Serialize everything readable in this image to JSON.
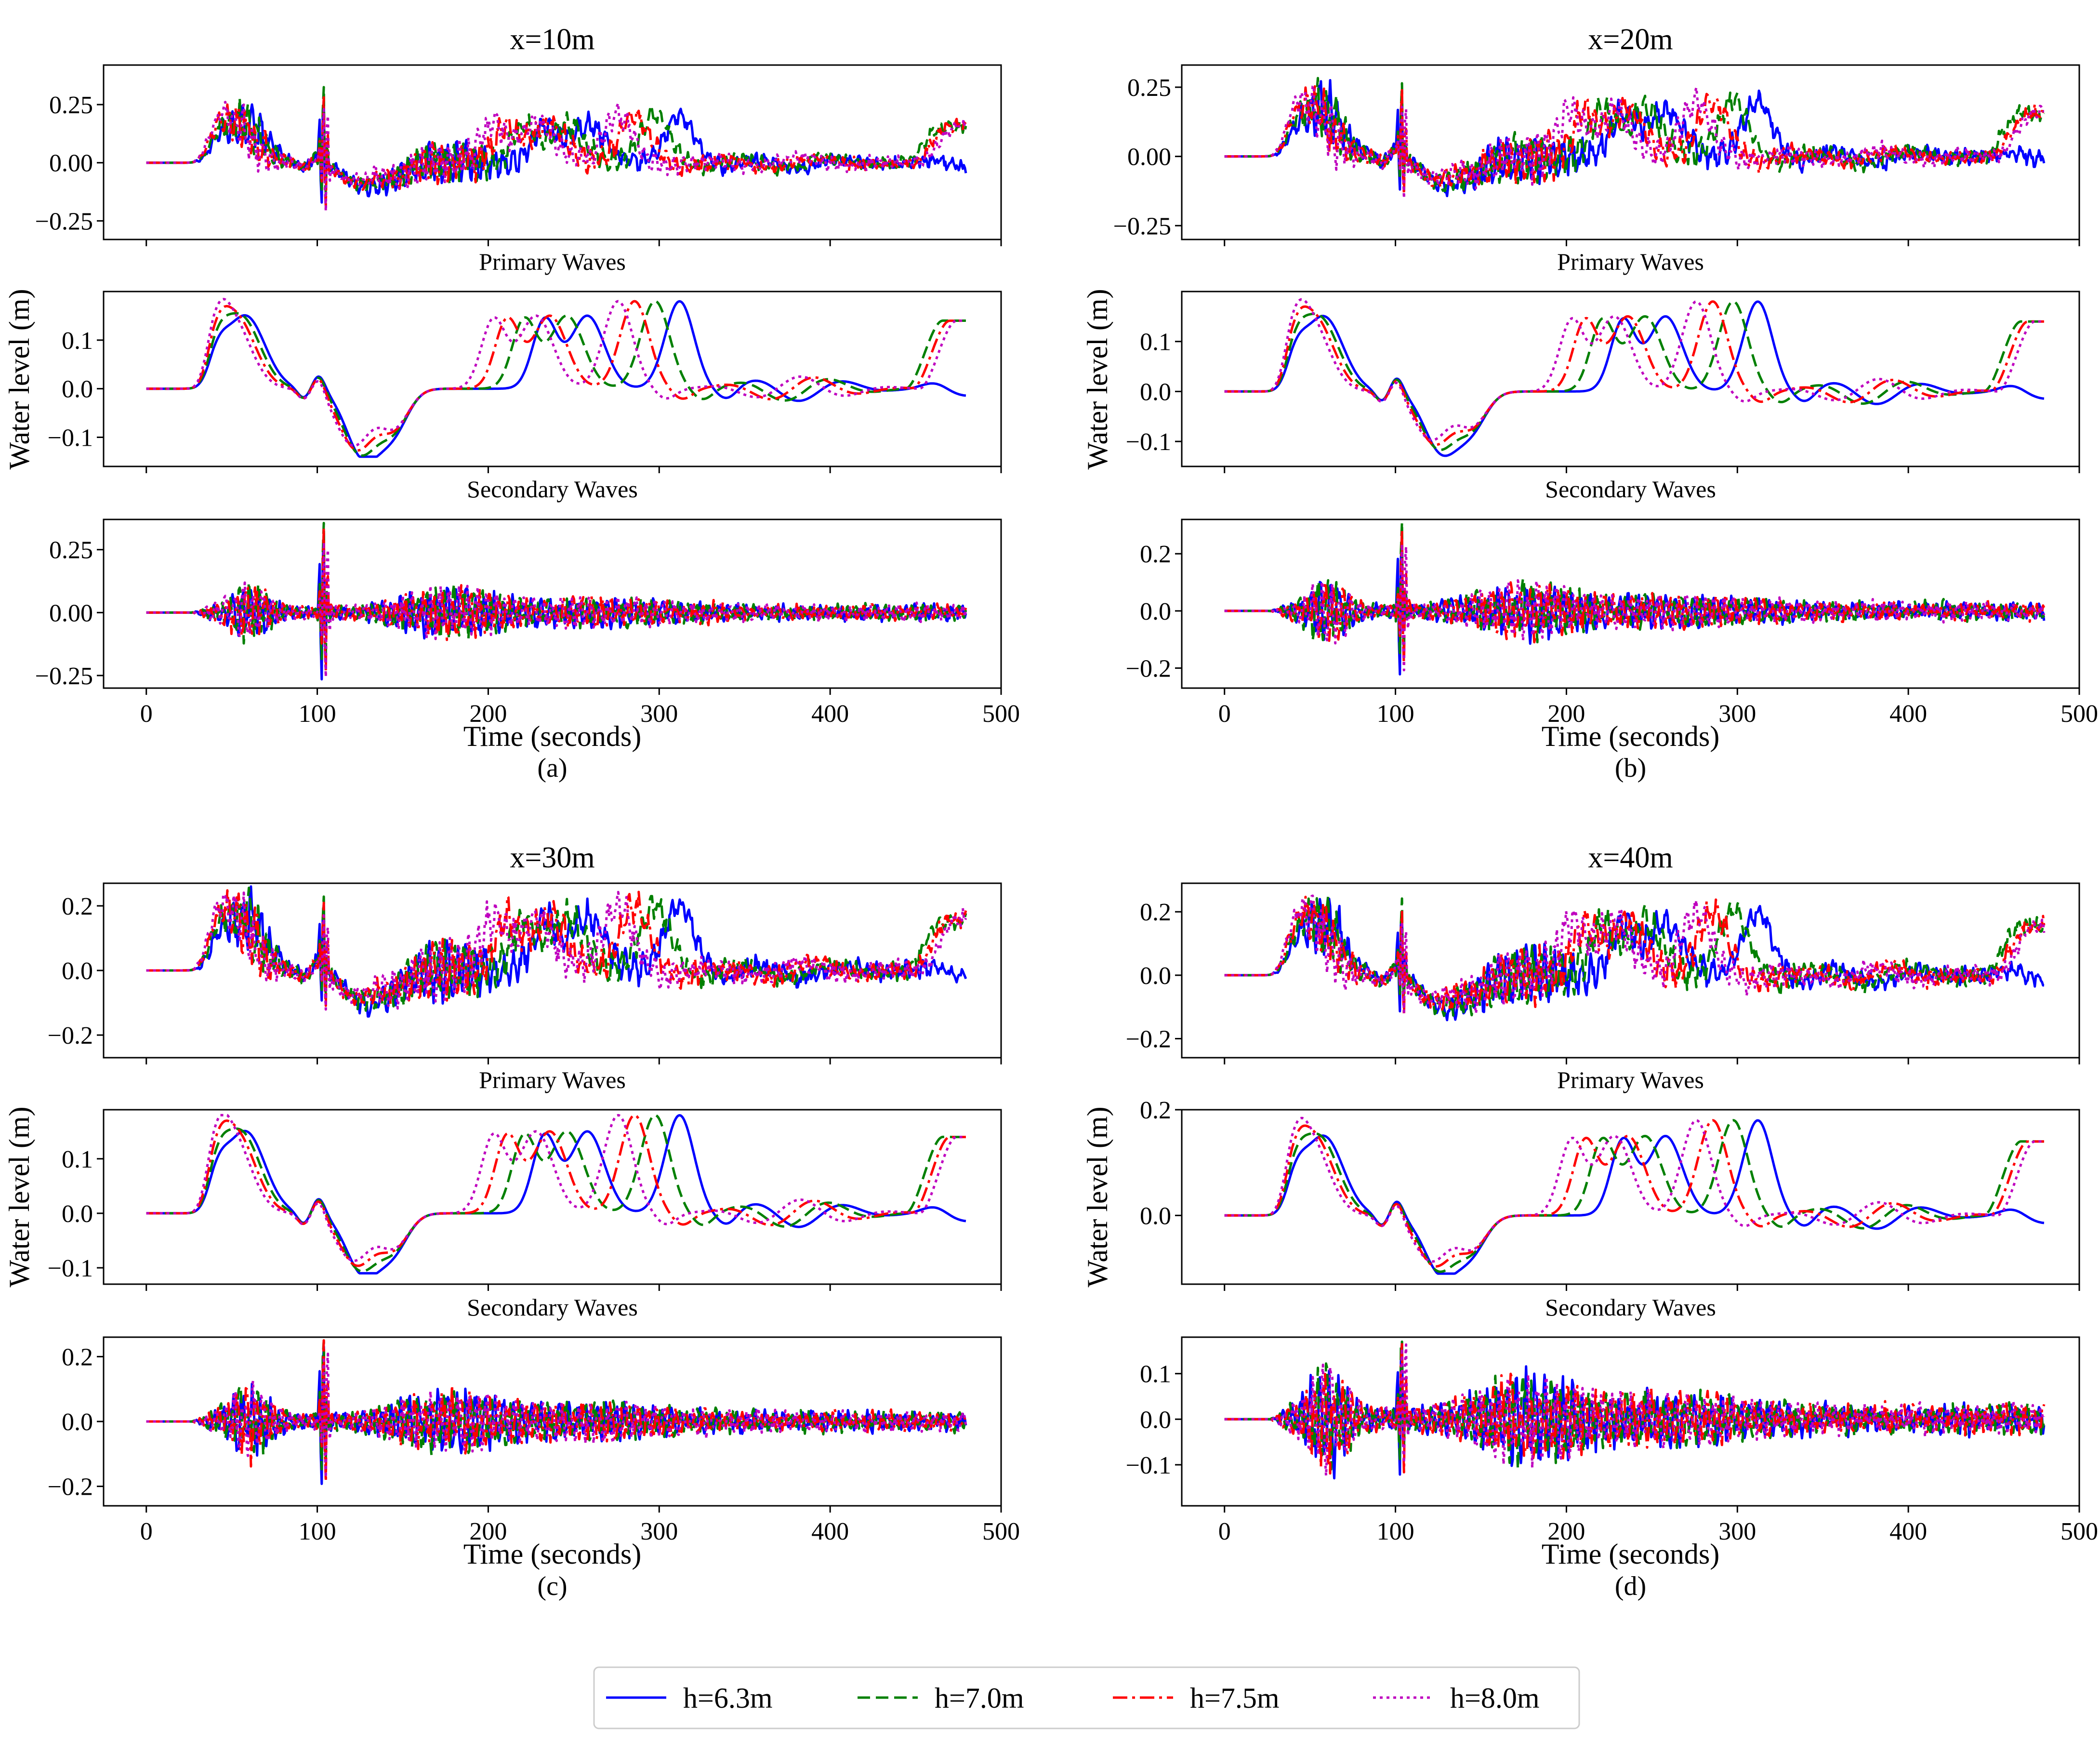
{
  "chart_data": {
    "type": "line",
    "x": {
      "label": "Time (seconds)",
      "range": [
        -25,
        500
      ],
      "ticks": [
        0,
        100,
        200,
        300,
        400,
        500
      ]
    },
    "series": [
      {
        "name": "h=6.3m",
        "color": "#0000ff",
        "dash": "solid"
      },
      {
        "name": "h=7.0m",
        "color": "#008000",
        "dash": "dashed"
      },
      {
        "name": "h=7.5m",
        "color": "#ff0000",
        "dash": "dashdot"
      },
      {
        "name": "h=8.0m",
        "color": "#bf00bf",
        "dash": "dotted"
      }
    ],
    "ylabel": "Water level (m)",
    "legend": {
      "placement": "bottom-center",
      "entries": [
        "h=6.3m",
        "h=7.0m",
        "h=7.5m",
        "h=8.0m"
      ]
    },
    "panels": [
      {
        "id": "a",
        "title": "x=10m",
        "caption": "(a)",
        "subplots": [
          {
            "kind": "total",
            "subtitle": "",
            "ylim": [
              -0.33,
              0.42
            ],
            "yticks": [
              -0.25,
              0.0,
              0.25
            ],
            "ytick_labels": [
              "−0.25",
              "0.00",
              "0.25"
            ],
            "peak_max": 0.39,
            "peak_min": -0.27
          },
          {
            "kind": "primary",
            "subtitle": "Primary Waves",
            "ylim": [
              -0.16,
              0.2
            ],
            "yticks": [
              -0.1,
              0.0,
              0.1
            ],
            "ytick_labels": [
              "−0.1",
              "0.0",
              "0.1"
            ],
            "peak_max": 0.18,
            "trough": -0.14
          },
          {
            "kind": "secondary",
            "subtitle": "Secondary Waves",
            "ylim": [
              -0.3,
              0.37
            ],
            "yticks": [
              -0.25,
              0.0,
              0.25
            ],
            "ytick_labels": [
              "−0.25",
              "0.00",
              "0.25"
            ],
            "peak_max": 0.35,
            "peak_min": -0.27
          }
        ]
      },
      {
        "id": "b",
        "title": "x=20m",
        "caption": "(b)",
        "subplots": [
          {
            "kind": "total",
            "subtitle": "",
            "ylim": [
              -0.3,
              0.33
            ],
            "yticks": [
              -0.25,
              0.0,
              0.25
            ],
            "ytick_labels": [
              "−0.25",
              "0.00",
              "0.25"
            ],
            "peak_max": 0.29,
            "peak_min": -0.25
          },
          {
            "kind": "primary",
            "subtitle": "Primary Waves",
            "ylim": [
              -0.15,
              0.2
            ],
            "yticks": [
              -0.1,
              0.0,
              0.1
            ],
            "ytick_labels": [
              "−0.1",
              "0.0",
              "0.1"
            ],
            "peak_max": 0.18,
            "trough": -0.12
          },
          {
            "kind": "secondary",
            "subtitle": "Secondary Waves",
            "ylim": [
              -0.27,
              0.32
            ],
            "yticks": [
              -0.2,
              0.0,
              0.2
            ],
            "ytick_labels": [
              "−0.2",
              "0.0",
              "0.2"
            ],
            "peak_max": 0.29,
            "peak_min": -0.24
          }
        ]
      },
      {
        "id": "c",
        "title": "x=30m",
        "caption": "(c)",
        "subplots": [
          {
            "kind": "total",
            "subtitle": "",
            "ylim": [
              -0.27,
              0.27
            ],
            "yticks": [
              -0.2,
              0.0,
              0.2
            ],
            "ytick_labels": [
              "−0.2",
              "0.0",
              "0.2"
            ],
            "peak_max": 0.25,
            "peak_min": -0.23
          },
          {
            "kind": "primary",
            "subtitle": "Primary Waves",
            "ylim": [
              -0.13,
              0.19
            ],
            "yticks": [
              -0.1,
              0.0,
              0.1
            ],
            "ytick_labels": [
              "−0.1",
              "0.0",
              "0.1"
            ],
            "peak_max": 0.18,
            "trough": -0.11
          },
          {
            "kind": "secondary",
            "subtitle": "Secondary Waves",
            "ylim": [
              -0.26,
              0.26
            ],
            "yticks": [
              -0.2,
              0.0,
              0.2
            ],
            "ytick_labels": [
              "−0.2",
              "0.0",
              "0.2"
            ],
            "peak_max": 0.24,
            "peak_min": -0.23
          }
        ]
      },
      {
        "id": "d",
        "title": "x=40m",
        "caption": "(d)",
        "subplots": [
          {
            "kind": "total",
            "subtitle": "",
            "ylim": [
              -0.26,
              0.29
            ],
            "yticks": [
              -0.2,
              0.0,
              0.2
            ],
            "ytick_labels": [
              "−0.2",
              "0.0",
              "0.2"
            ],
            "peak_max": 0.26,
            "peak_min": -0.22
          },
          {
            "kind": "primary",
            "subtitle": "Primary Waves",
            "ylim": [
              -0.13,
              0.2
            ],
            "yticks": [
              0.0,
              0.2
            ],
            "ytick_labels": [
              "0.0",
              "0.2"
            ],
            "peak_max": 0.18,
            "trough": -0.11
          },
          {
            "kind": "secondary",
            "subtitle": "Secondary Waves",
            "ylim": [
              -0.19,
              0.18
            ],
            "yticks": [
              -0.1,
              0.0,
              0.1
            ],
            "ytick_labels": [
              "−0.1",
              "0.0",
              "0.1"
            ],
            "peak_max": 0.16,
            "peak_min": -0.16
          }
        ]
      }
    ]
  }
}
